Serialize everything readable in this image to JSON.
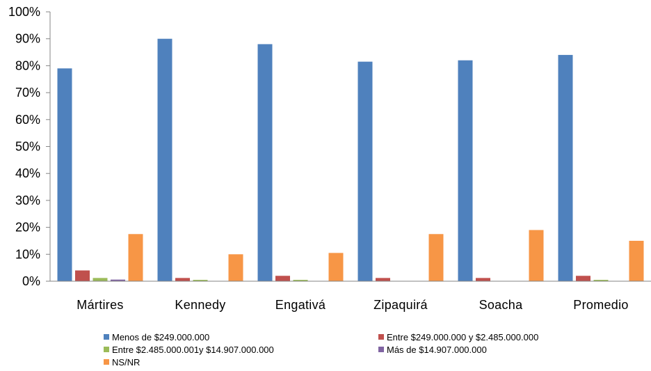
{
  "chart_data": {
    "type": "bar",
    "categories": [
      "Mártires",
      "Kennedy",
      "Engativá",
      "Zipaquirá",
      "Soacha",
      "Promedio"
    ],
    "series": [
      {
        "name": "Menos de $249.000.000",
        "color": "#4F81BD",
        "values": [
          79,
          90,
          88,
          81.5,
          82,
          84
        ]
      },
      {
        "name": "Entre $249.000.000 y $2.485.000.000",
        "color": "#C0504D",
        "values": [
          4,
          1.2,
          2,
          1.2,
          1.2,
          2
        ]
      },
      {
        "name": "Entre $2.485.000.001y $14.907.000.000",
        "color": "#9BBB59",
        "values": [
          1.2,
          0.5,
          0.5,
          0,
          0,
          0.5
        ]
      },
      {
        "name": "Más de $14.907.000.000",
        "color": "#8064A2",
        "values": [
          0.6,
          0,
          0,
          0,
          0,
          0
        ]
      },
      {
        "name": "NS/NR",
        "color": "#F79646",
        "values": [
          17.5,
          10,
          10.5,
          17.5,
          19,
          15
        ]
      }
    ],
    "yticks": [
      "0%",
      "10%",
      "20%",
      "30%",
      "40%",
      "50%",
      "60%",
      "70%",
      "80%",
      "90%",
      "100%"
    ],
    "ylim": [
      0,
      100
    ],
    "legend_position": "bottom",
    "grid": false
  }
}
